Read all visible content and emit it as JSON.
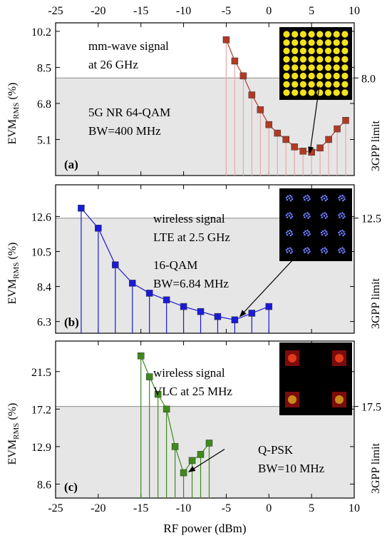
{
  "xaxis": {
    "label": "RF power (dBm)",
    "range": [
      -25,
      10
    ],
    "ticks": [
      -25,
      -20,
      -15,
      -10,
      -5,
      0,
      5,
      10
    ],
    "tick_labels": [
      "-25",
      "-20",
      "-15",
      "-10",
      "-5",
      "0",
      "5",
      "10"
    ]
  },
  "ylabel": {
    "main": "EVM",
    "sub": "RMS",
    "unit": " (%)"
  },
  "right_axis_label": "3GPP limit",
  "chart_data": [
    {
      "type": "line",
      "panel_label": "(a)",
      "ylim": [
        3.4,
        10.6
      ],
      "yticks": [
        "10.2",
        "8.5",
        "6.8",
        "5.1"
      ],
      "ytick_values": [
        10.2,
        8.5,
        6.8,
        5.1
      ],
      "limit": {
        "value": 8.0,
        "label": "8.0"
      },
      "color": "#b23a24",
      "stem_color": "#e8a8a8",
      "annotations": [
        {
          "text": "mm-wave signal"
        },
        {
          "text": "at 26 GHz"
        },
        {
          "text": "5G NR 64-QAM"
        },
        {
          "text": "BW=400 MHz"
        }
      ],
      "arrow": {
        "from": [
          5.9,
          7.6
        ],
        "to": [
          4.8,
          4.45
        ]
      },
      "inset": {
        "type": "constellation-64qam"
      },
      "points": [
        {
          "x": -5,
          "y": 9.8
        },
        {
          "x": -4,
          "y": 8.8
        },
        {
          "x": -3,
          "y": 8.1
        },
        {
          "x": -2,
          "y": 7.2
        },
        {
          "x": -1,
          "y": 6.5
        },
        {
          "x": 0,
          "y": 5.8
        },
        {
          "x": 1,
          "y": 5.4
        },
        {
          "x": 2,
          "y": 5.1
        },
        {
          "x": 3,
          "y": 4.75
        },
        {
          "x": 4,
          "y": 4.55
        },
        {
          "x": 5,
          "y": 4.5
        },
        {
          "x": 6,
          "y": 4.7
        },
        {
          "x": 7,
          "y": 5.1
        },
        {
          "x": 8,
          "y": 5.6
        },
        {
          "x": 9,
          "y": 6.0
        }
      ]
    },
    {
      "type": "line",
      "panel_label": "(b)",
      "ylim": [
        5.6,
        14.5
      ],
      "yticks": [
        "12.6",
        "10.5",
        "8.4",
        "6.3"
      ],
      "ytick_values": [
        12.6,
        10.5,
        8.4,
        6.3
      ],
      "limit": {
        "value": 12.5,
        "label": "12.5"
      },
      "color": "#1b1bd6",
      "stem_color": "#1b1bd6",
      "annotations": [
        {
          "text": "wireless signal"
        },
        {
          "text": "LTE at 2.5 GHz"
        },
        {
          "text": "16-QAM"
        },
        {
          "text": "BW=6.84 MHz"
        }
      ],
      "arrow": {
        "from": [
          2.8,
          10.0
        ],
        "to": [
          -3.4,
          6.6
        ]
      },
      "inset": {
        "type": "constellation-16qam"
      },
      "points": [
        {
          "x": -22,
          "y": 13.1
        },
        {
          "x": -20,
          "y": 11.9
        },
        {
          "x": -18,
          "y": 9.7
        },
        {
          "x": -16,
          "y": 8.6
        },
        {
          "x": -14,
          "y": 8.0
        },
        {
          "x": -12,
          "y": 7.6
        },
        {
          "x": -10,
          "y": 7.2
        },
        {
          "x": -8,
          "y": 6.9
        },
        {
          "x": -6,
          "y": 6.6
        },
        {
          "x": -4,
          "y": 6.4
        },
        {
          "x": -2,
          "y": 6.8
        },
        {
          "x": 0,
          "y": 7.2
        }
      ]
    },
    {
      "type": "line",
      "panel_label": "(c)",
      "ylim": [
        7.0,
        25.0
      ],
      "yticks": [
        "21.5",
        "17.2",
        "12.9",
        "8.6"
      ],
      "ytick_values": [
        21.5,
        17.2,
        12.9,
        8.6
      ],
      "limit": {
        "value": 17.5,
        "label": "17.5"
      },
      "color": "#3f8a1a",
      "stem_color": "#3f8a1a",
      "annotations": [
        {
          "text": "wireless signal"
        },
        {
          "text": "VLC at 25 MHz"
        },
        {
          "text": "Q-PSK"
        },
        {
          "text": "BW=10 MHz"
        }
      ],
      "arrow": {
        "from": [
          -5.2,
          12.6
        ],
        "to": [
          -9.4,
          10.0
        ]
      },
      "inset": {
        "type": "constellation-qpsk"
      },
      "points": [
        {
          "x": -15,
          "y": 23.3
        },
        {
          "x": -14,
          "y": 20.9
        },
        {
          "x": -13,
          "y": 18.9
        },
        {
          "x": -12,
          "y": 17.2
        },
        {
          "x": -11,
          "y": 12.9
        },
        {
          "x": -10,
          "y": 9.9
        },
        {
          "x": -9,
          "y": 11.3
        },
        {
          "x": -8,
          "y": 12.0
        },
        {
          "x": -7,
          "y": 13.3
        }
      ]
    }
  ]
}
